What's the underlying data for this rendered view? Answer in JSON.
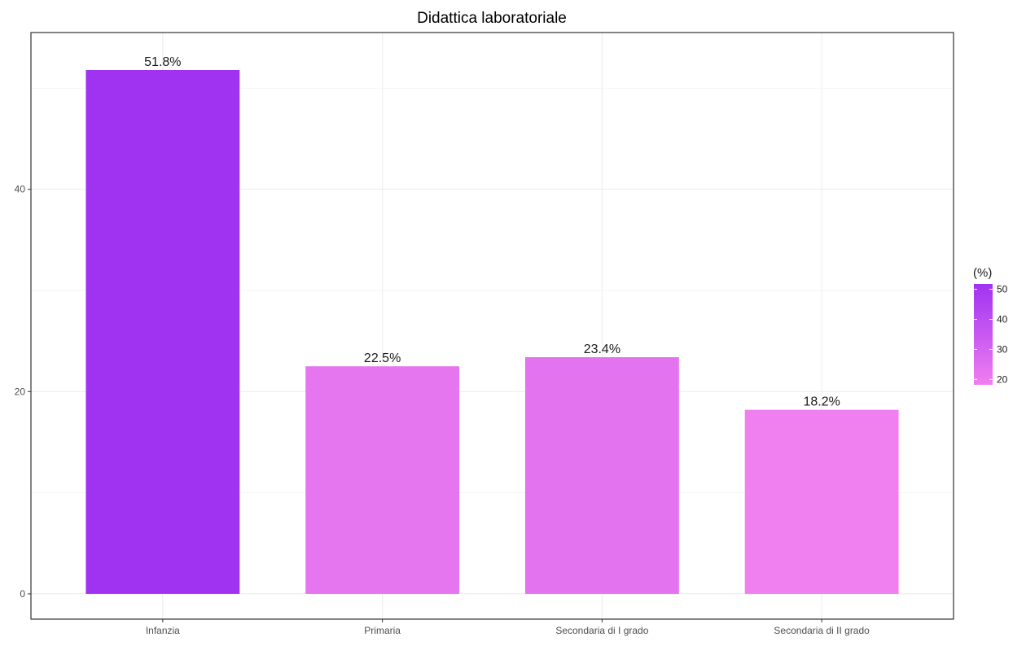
{
  "chart_data": {
    "type": "bar",
    "title": "Didattica laboratoriale",
    "xlabel": "",
    "ylabel": "",
    "categories": [
      "Infanzia",
      "Primaria",
      "Secondaria di I grado",
      "Secondaria di II grado"
    ],
    "values": [
      51.8,
      22.5,
      23.4,
      18.2
    ],
    "value_labels": [
      "51.8%",
      "22.5%",
      "23.4%",
      "18.2%"
    ],
    "ylim": [
      -2.5,
      55.5
    ],
    "yticks": [
      0,
      20,
      40
    ],
    "grid": true,
    "legend": {
      "title": "(%)",
      "type": "colorbar",
      "placement": "right",
      "range": [
        18.2,
        51.8
      ],
      "ticks": [
        20,
        30,
        40,
        50
      ],
      "color_low": "#f07ff0",
      "color_high": "#a033f2"
    }
  }
}
